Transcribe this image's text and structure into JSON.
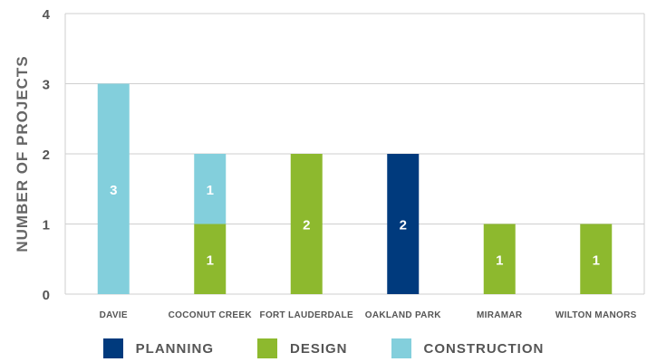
{
  "chart_data": {
    "type": "bar",
    "stacked": true,
    "title": "",
    "xlabel": "",
    "ylabel": "NUMBER OF PROJECTS",
    "ylim": [
      0,
      4
    ],
    "yticks": [
      "0",
      "1",
      "2",
      "3",
      "4"
    ],
    "grid": true,
    "legend_position": "bottom",
    "categories": [
      "DAVIE",
      "COCONUT CREEK",
      "FORT LAUDERDALE",
      "OAKLAND PARK",
      "MIRAMAR",
      "WILTON MANORS"
    ],
    "series": [
      {
        "name": "PLANNING",
        "color": "#003a7d",
        "values": [
          0,
          0,
          0,
          2,
          0,
          0
        ],
        "labels": [
          "",
          "",
          "",
          "2",
          "",
          ""
        ]
      },
      {
        "name": "DESIGN",
        "color": "#8db92e",
        "values": [
          0,
          1,
          2,
          0,
          1,
          1
        ],
        "labels": [
          "",
          "1",
          "2",
          "",
          "1",
          "1"
        ]
      },
      {
        "name": "CONSTRUCTION",
        "color": "#83cfdc",
        "values": [
          3,
          1,
          0,
          0,
          0,
          0
        ],
        "labels": [
          "3",
          "1",
          "",
          "",
          "",
          ""
        ]
      }
    ]
  }
}
